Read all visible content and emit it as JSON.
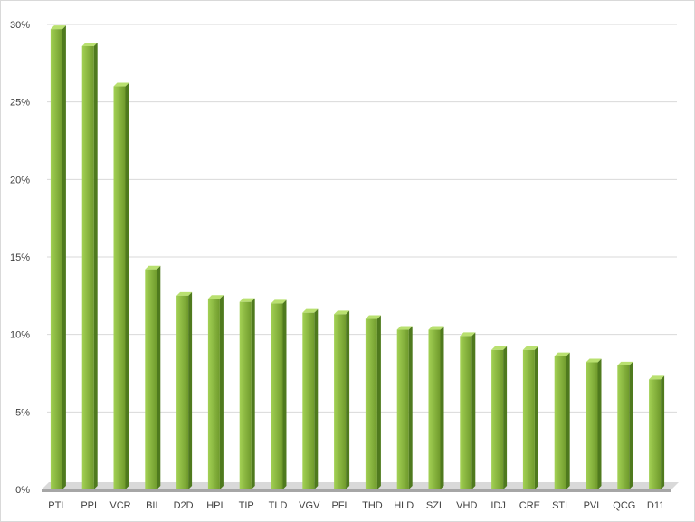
{
  "chart_data": {
    "type": "bar",
    "categories": [
      "PTL",
      "PPI",
      "VCR",
      "BII",
      "D2D",
      "HPI",
      "TIP",
      "TLD",
      "VGV",
      "PFL",
      "THD",
      "HLD",
      "SZL",
      "VHD",
      "IDJ",
      "CRE",
      "STL",
      "PVL",
      "QCG",
      "D11"
    ],
    "values": [
      29.7,
      28.6,
      26.0,
      14.2,
      12.5,
      12.3,
      12.1,
      12.0,
      11.4,
      11.3,
      11.0,
      10.3,
      10.3,
      9.9,
      9.0,
      9.0,
      8.6,
      8.2,
      8.0,
      7.1
    ],
    "value_format": "percent",
    "ylim": [
      0,
      30
    ],
    "yticks": [
      "0%",
      "5%",
      "10%",
      "15%",
      "20%",
      "25%",
      "30%"
    ],
    "grid": true,
    "legend": "none",
    "title": "",
    "xlabel": "",
    "ylabel": "",
    "colors": {
      "bar_front_light": "#a3d154",
      "bar_front_dark": "#6f9a2c",
      "bar_side": "#4f7a1e",
      "bar_top": "#b9e070",
      "gridline": "#d9d9d9",
      "floor": "#a6a6a6",
      "floor_shadow": "#d9d9d9"
    }
  }
}
